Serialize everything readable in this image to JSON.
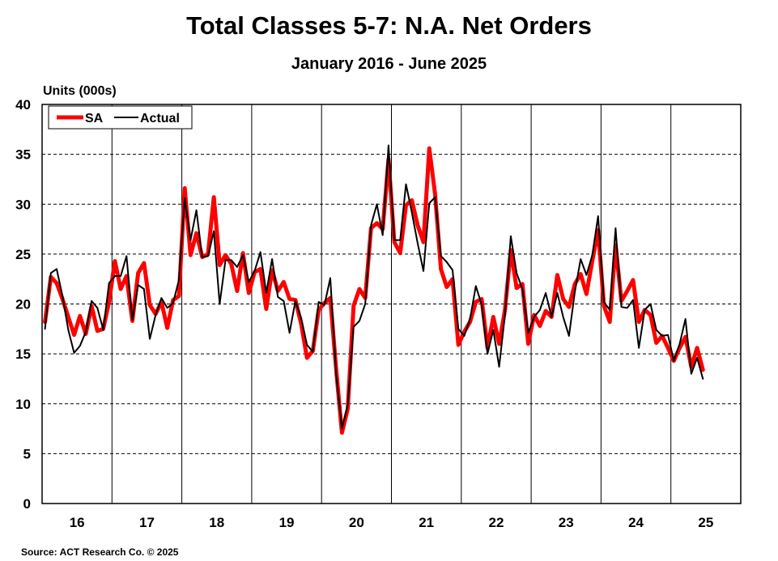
{
  "chart_data": {
    "type": "line",
    "title": "Total Classes 5-7: N.A. Net Orders",
    "subtitle": "January 2016 - June 2025",
    "ylabel": "Units (000s)",
    "xlabel": "",
    "ylim": [
      0,
      40
    ],
    "yticks": [
      "0",
      "5",
      "10",
      "15",
      "20",
      "25",
      "30",
      "35",
      "40"
    ],
    "xtick_labels": [
      "16",
      "17",
      "18",
      "19",
      "20",
      "21",
      "22",
      "23",
      "24",
      "25"
    ],
    "grid": "horizontal dashed, vertical solid at year boundaries",
    "legend": {
      "placement": "top-left",
      "entries": [
        "SA",
        "Actual"
      ]
    },
    "x": [
      "2016-01",
      "2016-02",
      "2016-03",
      "2016-04",
      "2016-05",
      "2016-06",
      "2016-07",
      "2016-08",
      "2016-09",
      "2016-10",
      "2016-11",
      "2016-12",
      "2017-01",
      "2017-02",
      "2017-03",
      "2017-04",
      "2017-05",
      "2017-06",
      "2017-07",
      "2017-08",
      "2017-09",
      "2017-10",
      "2017-11",
      "2017-12",
      "2018-01",
      "2018-02",
      "2018-03",
      "2018-04",
      "2018-05",
      "2018-06",
      "2018-07",
      "2018-08",
      "2018-09",
      "2018-10",
      "2018-11",
      "2018-12",
      "2019-01",
      "2019-02",
      "2019-03",
      "2019-04",
      "2019-05",
      "2019-06",
      "2019-07",
      "2019-08",
      "2019-09",
      "2019-10",
      "2019-11",
      "2019-12",
      "2020-01",
      "2020-02",
      "2020-03",
      "2020-04",
      "2020-05",
      "2020-06",
      "2020-07",
      "2020-08",
      "2020-09",
      "2020-10",
      "2020-11",
      "2020-12",
      "2021-01",
      "2021-02",
      "2021-03",
      "2021-04",
      "2021-05",
      "2021-06",
      "2021-07",
      "2021-08",
      "2021-09",
      "2021-10",
      "2021-11",
      "2021-12",
      "2022-01",
      "2022-02",
      "2022-03",
      "2022-04",
      "2022-05",
      "2022-06",
      "2022-07",
      "2022-08",
      "2022-09",
      "2022-10",
      "2022-11",
      "2022-12",
      "2023-01",
      "2023-02",
      "2023-03",
      "2023-04",
      "2023-05",
      "2023-06",
      "2023-07",
      "2023-08",
      "2023-09",
      "2023-10",
      "2023-11",
      "2023-12",
      "2024-01",
      "2024-02",
      "2024-03",
      "2024-04",
      "2024-05",
      "2024-06",
      "2024-07",
      "2024-08",
      "2024-09",
      "2024-10",
      "2024-11",
      "2024-12",
      "2025-01",
      "2025-02",
      "2025-03",
      "2025-04",
      "2025-05",
      "2025-06"
    ],
    "series": [
      {
        "name": "SA",
        "color": "#ff0000",
        "values": [
          18.2,
          22.7,
          22.1,
          20.5,
          18.7,
          16.9,
          18.8,
          17.0,
          19.8,
          17.3,
          17.5,
          20.2,
          24.3,
          21.5,
          22.8,
          18.3,
          23.1,
          24.1,
          19.9,
          19.0,
          20.2,
          17.6,
          20.4,
          20.8,
          31.6,
          24.9,
          27.1,
          24.7,
          25.0,
          30.7,
          23.9,
          24.9,
          24.0,
          21.3,
          25.1,
          21.1,
          23.2,
          23.5,
          19.5,
          23.4,
          21.3,
          22.2,
          20.5,
          20.4,
          18.0,
          14.6,
          15.3,
          19.4,
          20.1,
          20.6,
          13.5,
          7.1,
          9.5,
          19.8,
          21.5,
          20.6,
          27.6,
          28.1,
          27.5,
          34.5,
          26.2,
          25.1,
          29.9,
          30.4,
          27.9,
          26.2,
          35.6,
          31.0,
          23.5,
          21.7,
          22.5,
          15.9,
          17.2,
          18.2,
          20.2,
          20.5,
          15.6,
          18.7,
          16.0,
          19.4,
          25.4,
          21.6,
          22.0,
          16.0,
          18.9,
          17.8,
          19.3,
          18.7,
          22.9,
          20.5,
          19.7,
          22.0,
          23.0,
          21.0,
          24.3,
          27.4,
          19.8,
          18.2,
          25.9,
          20.3,
          21.3,
          22.4,
          18.2,
          19.4,
          18.9,
          16.1,
          16.8,
          15.6,
          14.3,
          15.6,
          16.7,
          13.7,
          15.6,
          13.4
        ]
      },
      {
        "name": "Actual",
        "color": "#000000",
        "values": [
          17.5,
          23.1,
          23.5,
          20.8,
          17.4,
          15.1,
          15.8,
          17.2,
          20.3,
          19.6,
          17.4,
          22.1,
          22.8,
          22.8,
          24.8,
          18.4,
          21.9,
          21.5,
          16.5,
          18.9,
          20.6,
          19.6,
          20.1,
          22.4,
          30.6,
          26.4,
          29.4,
          24.7,
          24.8,
          27.3,
          20.0,
          24.4,
          24.4,
          23.7,
          24.9,
          22.2,
          23.3,
          25.2,
          21.1,
          24.5,
          20.7,
          20.3,
          17.1,
          20.3,
          18.6,
          15.9,
          15.2,
          20.2,
          19.9,
          22.6,
          13.0,
          7.5,
          9.9,
          17.7,
          18.3,
          20.0,
          27.9,
          30.0,
          26.9,
          35.9,
          26.4,
          26.4,
          32.0,
          29.2,
          26.1,
          23.3,
          30.1,
          30.7,
          24.8,
          24.2,
          23.4,
          17.5,
          16.8,
          18.5,
          21.8,
          19.9,
          15.0,
          17.4,
          13.7,
          18.9,
          26.8,
          23.1,
          21.5,
          17.1,
          18.7,
          19.4,
          21.1,
          18.7,
          21.1,
          18.7,
          16.8,
          21.2,
          24.5,
          22.9,
          24.9,
          28.8,
          20.2,
          19.4,
          27.6,
          19.7,
          19.6,
          20.4,
          15.6,
          19.4,
          20.0,
          17.4,
          16.8,
          16.9,
          14.3,
          16.0,
          18.5,
          13.0,
          14.6,
          12.5
        ]
      }
    ]
  },
  "source": "Source: ACT Research Co. © 2025"
}
